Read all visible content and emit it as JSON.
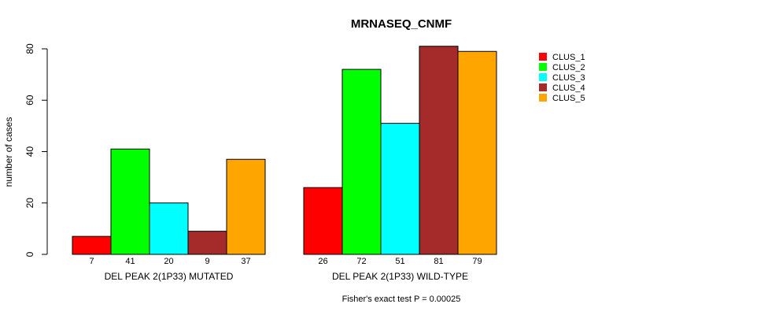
{
  "chart_data": {
    "type": "bar",
    "title": "MRNASEQ_CNMF",
    "xlabel": "",
    "ylabel": "number of cases",
    "ylim": [
      0,
      80
    ],
    "yticks": [
      0,
      20,
      40,
      60,
      80
    ],
    "categories": [
      "DEL PEAK 2(1P33) MUTATED",
      "DEL PEAK 2(1P33) WILD-TYPE"
    ],
    "series": [
      {
        "name": "CLUS_1",
        "color": "#ff0000",
        "values": [
          7,
          26
        ]
      },
      {
        "name": "CLUS_2",
        "color": "#00ff00",
        "values": [
          41,
          72
        ]
      },
      {
        "name": "CLUS_3",
        "color": "#00ffff",
        "values": [
          20,
          51
        ]
      },
      {
        "name": "CLUS_4",
        "color": "#a52a2a",
        "values": [
          9,
          81
        ]
      },
      {
        "name": "CLUS_5",
        "color": "#ffa500",
        "values": [
          37,
          79
        ]
      }
    ],
    "annotation": "Fisher's exact test P = 0.00025",
    "legend_position": "top-right"
  }
}
